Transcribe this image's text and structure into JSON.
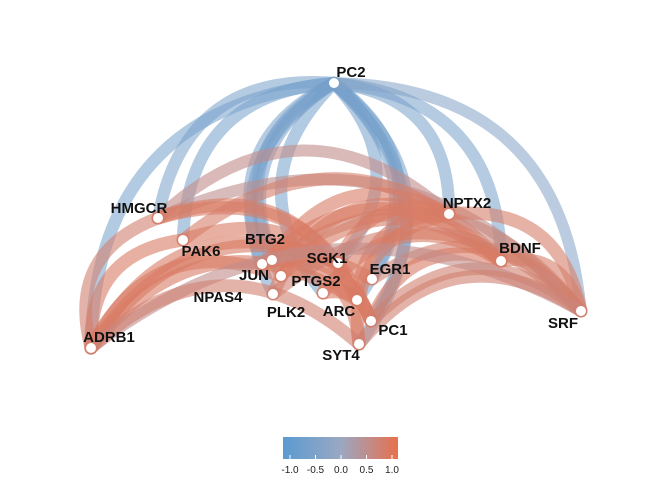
{
  "figure": {
    "type": "correlation-network",
    "colors": {
      "negative": "#5b9bd1",
      "neutral": "#9aa8c2",
      "positive": "#e8704d"
    }
  },
  "nodes": [
    {
      "id": "PC2"
    },
    {
      "id": "HMGCR"
    },
    {
      "id": "NPTX2"
    },
    {
      "id": "PAK6"
    },
    {
      "id": "BTG2"
    },
    {
      "id": "BDNF"
    },
    {
      "id": "SGK1"
    },
    {
      "id": "JUN"
    },
    {
      "id": "EGR1"
    },
    {
      "id": "PTGS2"
    },
    {
      "id": "NPAS4"
    },
    {
      "id": "ARC"
    },
    {
      "id": "PLK2"
    },
    {
      "id": "SRF"
    },
    {
      "id": "PC1"
    },
    {
      "id": "ADRB1"
    },
    {
      "id": "SYT4"
    }
  ],
  "edges": [
    {
      "from": "PC2",
      "to": "ADRB1",
      "r": -0.6
    },
    {
      "from": "PC2",
      "to": "HMGCR",
      "r": -0.55
    },
    {
      "from": "PC2",
      "to": "PAK6",
      "r": -0.6
    },
    {
      "from": "PC2",
      "to": "BTG2",
      "r": -0.6
    },
    {
      "from": "PC2",
      "to": "JUN",
      "r": -0.55
    },
    {
      "from": "PC2",
      "to": "SGK1",
      "r": -0.6
    },
    {
      "from": "PC2",
      "to": "PTGS2",
      "r": -0.55
    },
    {
      "from": "PC2",
      "to": "NPAS4",
      "r": -0.55
    },
    {
      "from": "PC2",
      "to": "PLK2",
      "r": -0.6
    },
    {
      "from": "PC2",
      "to": "ARC",
      "r": -0.6
    },
    {
      "from": "PC2",
      "to": "EGR1",
      "r": -0.55
    },
    {
      "from": "PC2",
      "to": "PC1",
      "r": -0.6
    },
    {
      "from": "PC2",
      "to": "SYT4",
      "r": -0.55
    },
    {
      "from": "PC2",
      "to": "NPTX2",
      "r": -0.55
    },
    {
      "from": "PC2",
      "to": "BDNF",
      "r": -0.55
    },
    {
      "from": "PC2",
      "to": "SRF",
      "r": -0.35
    },
    {
      "from": "HMGCR",
      "to": "SRF",
      "r": 0.45
    },
    {
      "from": "HMGCR",
      "to": "NPTX2",
      "r": 0.5
    },
    {
      "from": "HMGCR",
      "to": "ADRB1",
      "r": 0.7
    },
    {
      "from": "HMGCR",
      "to": "PC1",
      "r": 0.8
    },
    {
      "from": "HMGCR",
      "to": "ARC",
      "r": 0.8
    },
    {
      "from": "PAK6",
      "to": "BDNF",
      "r": 0.75
    },
    {
      "from": "PAK6",
      "to": "PC1",
      "r": 0.8
    },
    {
      "from": "PAK6",
      "to": "ADRB1",
      "r": 0.8
    },
    {
      "from": "BTG2",
      "to": "NPTX2",
      "r": 0.8
    },
    {
      "from": "BTG2",
      "to": "SRF",
      "r": 0.6
    },
    {
      "from": "BTG2",
      "to": "SYT4",
      "r": 0.8
    },
    {
      "from": "JUN",
      "to": "BDNF",
      "r": 0.8
    },
    {
      "from": "JUN",
      "to": "PC1",
      "r": 0.8
    },
    {
      "from": "SGK1",
      "to": "ADRB1",
      "r": 0.8
    },
    {
      "from": "SGK1",
      "to": "NPTX2",
      "r": 0.8
    },
    {
      "from": "PTGS2",
      "to": "ADRB1",
      "r": 0.8
    },
    {
      "from": "PTGS2",
      "to": "BDNF",
      "r": 0.8
    },
    {
      "from": "EGR1",
      "to": "ADRB1",
      "r": 0.8
    },
    {
      "from": "EGR1",
      "to": "SRF",
      "r": 0.7
    },
    {
      "from": "NPAS4",
      "to": "NPTX2",
      "r": 0.8
    },
    {
      "from": "NPAS4",
      "to": "SRF",
      "r": 0.7
    },
    {
      "from": "PLK2",
      "to": "BDNF",
      "r": 0.8
    },
    {
      "from": "PLK2",
      "to": "PC1",
      "r": 0.8
    },
    {
      "from": "ARC",
      "to": "ADRB1",
      "r": 0.8
    },
    {
      "from": "ARC",
      "to": "NPTX2",
      "r": 0.8
    },
    {
      "from": "NPTX2",
      "to": "SRF",
      "r": 0.75
    },
    {
      "from": "NPTX2",
      "to": "SYT4",
      "r": 0.8
    },
    {
      "from": "BDNF",
      "to": "SRF",
      "r": 0.75
    },
    {
      "from": "BDNF",
      "to": "PC1",
      "r": 0.8
    },
    {
      "from": "PC1",
      "to": "SRF",
      "r": 0.7
    },
    {
      "from": "ADRB1",
      "to": "SRF",
      "r": 0.5
    },
    {
      "from": "ADRB1",
      "to": "SYT4",
      "r": 0.7
    },
    {
      "from": "SYT4",
      "to": "SRF",
      "r": 0.7
    }
  ],
  "legend": {
    "ticks": [
      "-1.0",
      "-0.5",
      "0.0",
      "0.5",
      "1.0"
    ]
  }
}
